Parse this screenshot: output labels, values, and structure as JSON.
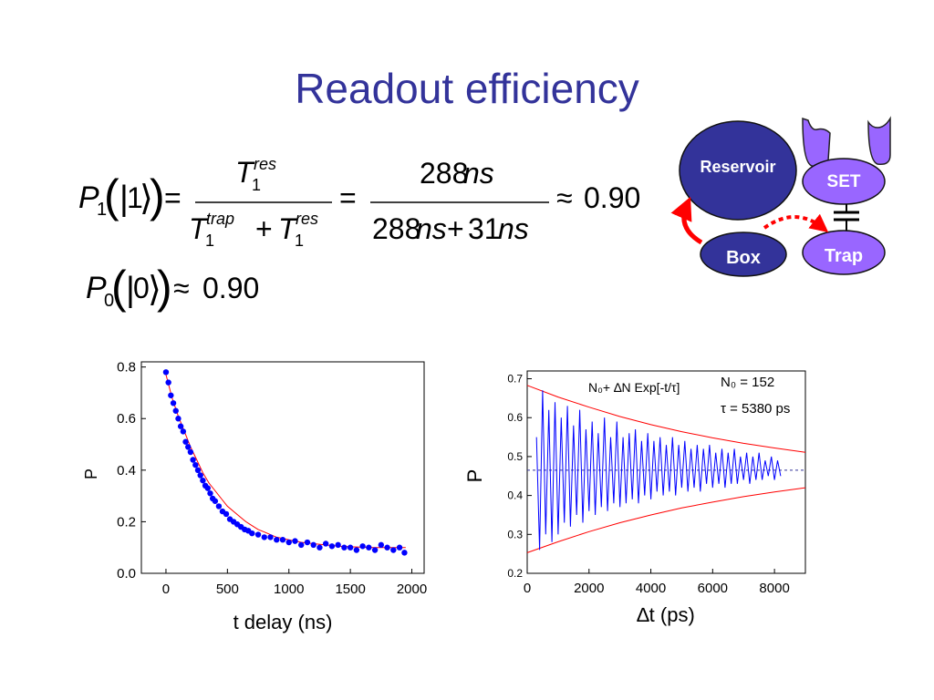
{
  "slide": {
    "title": "Readout efficiency"
  },
  "equations": {
    "eq1": {
      "lhs_symbol": "P",
      "lhs_sub": "1",
      "lhs_ket": "1",
      "equals": "=",
      "frac1_num": "T",
      "frac1_num_sup": "res",
      "frac1_num_sub": "1",
      "frac1_den_a": "T",
      "frac1_den_a_sup": "trap",
      "frac1_den_a_sub": "1",
      "frac1_den_plus": "+",
      "frac1_den_b": "T",
      "frac1_den_b_sup": "res",
      "frac1_den_b_sub": "1",
      "frac2_num": "288",
      "frac2_num_unit": "ns",
      "frac2_den_a": "288",
      "frac2_den_a_unit": "ns",
      "frac2_den_plus": "+",
      "frac2_den_b": "31",
      "frac2_den_b_unit": "ns",
      "approx": "≈",
      "result": "0.90"
    },
    "eq2": {
      "lhs_symbol": "P",
      "lhs_sub": "0",
      "lhs_ket": "0",
      "approx": "≈",
      "result": "0.90"
    }
  },
  "diagram": {
    "reservoir_label": "Reservoir",
    "set_label": "SET",
    "box_label": "Box",
    "trap_label": "Trap",
    "colors": {
      "node_dark": "#33339a",
      "node_light": "#9966ff",
      "arrow": "#ff0000"
    }
  },
  "chart_data": [
    {
      "type": "scatter",
      "xlabel": "t delay (ns)",
      "ylabel": "P",
      "xlim": [
        -200,
        2100
      ],
      "ylim": [
        0.0,
        0.82
      ],
      "xticks": [
        "0",
        "500",
        "1000",
        "1500",
        "2000"
      ],
      "yticks": [
        "0.0",
        "0.2",
        "0.4",
        "0.6",
        "0.8"
      ],
      "series": [
        {
          "x": [
            0,
            20,
            40,
            60,
            80,
            100,
            120,
            140,
            160,
            180,
            200,
            220,
            240,
            260,
            280,
            300,
            320,
            340,
            360,
            380,
            400,
            430,
            460,
            490,
            520,
            550,
            580,
            610,
            640,
            670,
            700,
            750,
            800,
            850,
            900,
            950,
            1000,
            1050,
            1100,
            1150,
            1200,
            1250,
            1300,
            1350,
            1400,
            1450,
            1500,
            1550,
            1600,
            1650,
            1700,
            1750,
            1800,
            1850,
            1900,
            1940
          ],
          "y": [
            0.78,
            0.74,
            0.69,
            0.66,
            0.63,
            0.6,
            0.57,
            0.55,
            0.51,
            0.49,
            0.47,
            0.44,
            0.42,
            0.4,
            0.38,
            0.36,
            0.34,
            0.33,
            0.31,
            0.29,
            0.28,
            0.26,
            0.24,
            0.23,
            0.21,
            0.2,
            0.19,
            0.18,
            0.17,
            0.165,
            0.155,
            0.15,
            0.14,
            0.14,
            0.13,
            0.13,
            0.12,
            0.125,
            0.11,
            0.12,
            0.11,
            0.1,
            0.115,
            0.105,
            0.11,
            0.1,
            0.1,
            0.09,
            0.105,
            0.1,
            0.09,
            0.11,
            0.1,
            0.09,
            0.1,
            0.08
          ]
        },
        {
          "x": [
            0,
            50,
            100,
            150,
            200,
            250,
            300,
            350,
            400,
            450,
            500,
            550,
            600,
            650,
            700,
            750,
            800,
            850,
            900,
            950,
            1000,
            1100,
            1200,
            1300,
            1400,
            1500,
            1600,
            1700,
            1800,
            1900,
            1950
          ],
          "y": [
            0.77,
            0.68,
            0.61,
            0.55,
            0.49,
            0.44,
            0.39,
            0.35,
            0.32,
            0.29,
            0.26,
            0.24,
            0.22,
            0.2,
            0.185,
            0.17,
            0.16,
            0.15,
            0.14,
            0.135,
            0.13,
            0.12,
            0.115,
            0.11,
            0.105,
            0.103,
            0.101,
            0.1,
            0.1,
            0.1,
            0.1
          ]
        }
      ],
      "colors": {
        "points": "#0000ff",
        "fit": "#ff0000"
      }
    },
    {
      "type": "line",
      "xlabel": "∆t (ps)",
      "ylabel": "P",
      "xlim": [
        0,
        9000
      ],
      "ylim": [
        0.2,
        0.72
      ],
      "xticks": [
        "0",
        "2000",
        "4000",
        "6000",
        "8000"
      ],
      "yticks": [
        "0.2",
        "0.3",
        "0.4",
        "0.5",
        "0.6",
        "0.7"
      ],
      "legend_formula": "N₀+ ∆N Exp[-t/τ]",
      "annotation_n0": "N₀ = 152",
      "annotation_tau": "τ = 5380 ps",
      "n0_line": 0.465,
      "series": [
        {
          "x": [
            300,
            400,
            500,
            600,
            700,
            800,
            900,
            1000,
            1100,
            1200,
            1300,
            1400,
            1500,
            1600,
            1700,
            1800,
            1900,
            2000,
            2100,
            2200,
            2300,
            2400,
            2500,
            2600,
            2700,
            2800,
            2900,
            3000,
            3100,
            3200,
            3300,
            3400,
            3500,
            3600,
            3700,
            3800,
            3900,
            4000,
            4100,
            4200,
            4300,
            4400,
            4500,
            4600,
            4700,
            4800,
            4900,
            5000,
            5100,
            5200,
            5300,
            5400,
            5500,
            5600,
            5700,
            5800,
            5900,
            6000,
            6100,
            6200,
            6300,
            6400,
            6500,
            6600,
            6700,
            6800,
            6900,
            7000,
            7100,
            7200,
            7300,
            7400,
            7500,
            7600,
            7700,
            7800,
            7900,
            8000,
            8100,
            8200
          ],
          "y": [
            0.55,
            0.26,
            0.67,
            0.3,
            0.62,
            0.28,
            0.64,
            0.3,
            0.6,
            0.33,
            0.63,
            0.32,
            0.58,
            0.35,
            0.62,
            0.33,
            0.57,
            0.36,
            0.59,
            0.35,
            0.56,
            0.37,
            0.6,
            0.36,
            0.55,
            0.38,
            0.59,
            0.37,
            0.55,
            0.38,
            0.56,
            0.39,
            0.57,
            0.38,
            0.54,
            0.4,
            0.56,
            0.39,
            0.54,
            0.41,
            0.55,
            0.4,
            0.53,
            0.41,
            0.55,
            0.4,
            0.53,
            0.42,
            0.54,
            0.41,
            0.52,
            0.42,
            0.53,
            0.41,
            0.52,
            0.43,
            0.53,
            0.42,
            0.51,
            0.43,
            0.52,
            0.42,
            0.51,
            0.43,
            0.52,
            0.43,
            0.5,
            0.44,
            0.51,
            0.43,
            0.5,
            0.44,
            0.51,
            0.44,
            0.49,
            0.45,
            0.5,
            0.44,
            0.49,
            0.45
          ]
        },
        {
          "x": [
            0,
            1000,
            2000,
            3000,
            4000,
            5000,
            6000,
            7000,
            8000,
            9000
          ],
          "y": [
            0.683,
            0.653,
            0.627,
            0.603,
            0.582,
            0.564,
            0.548,
            0.534,
            0.522,
            0.511
          ]
        },
        {
          "x": [
            0,
            1000,
            2000,
            3000,
            4000,
            5000,
            6000,
            7000,
            8000,
            9000
          ],
          "y": [
            0.253,
            0.281,
            0.307,
            0.33,
            0.35,
            0.368,
            0.383,
            0.397,
            0.409,
            0.42
          ]
        }
      ],
      "colors": {
        "data": "#0000ff",
        "envelope": "#ff0000",
        "baseline": "#333399"
      }
    }
  ]
}
